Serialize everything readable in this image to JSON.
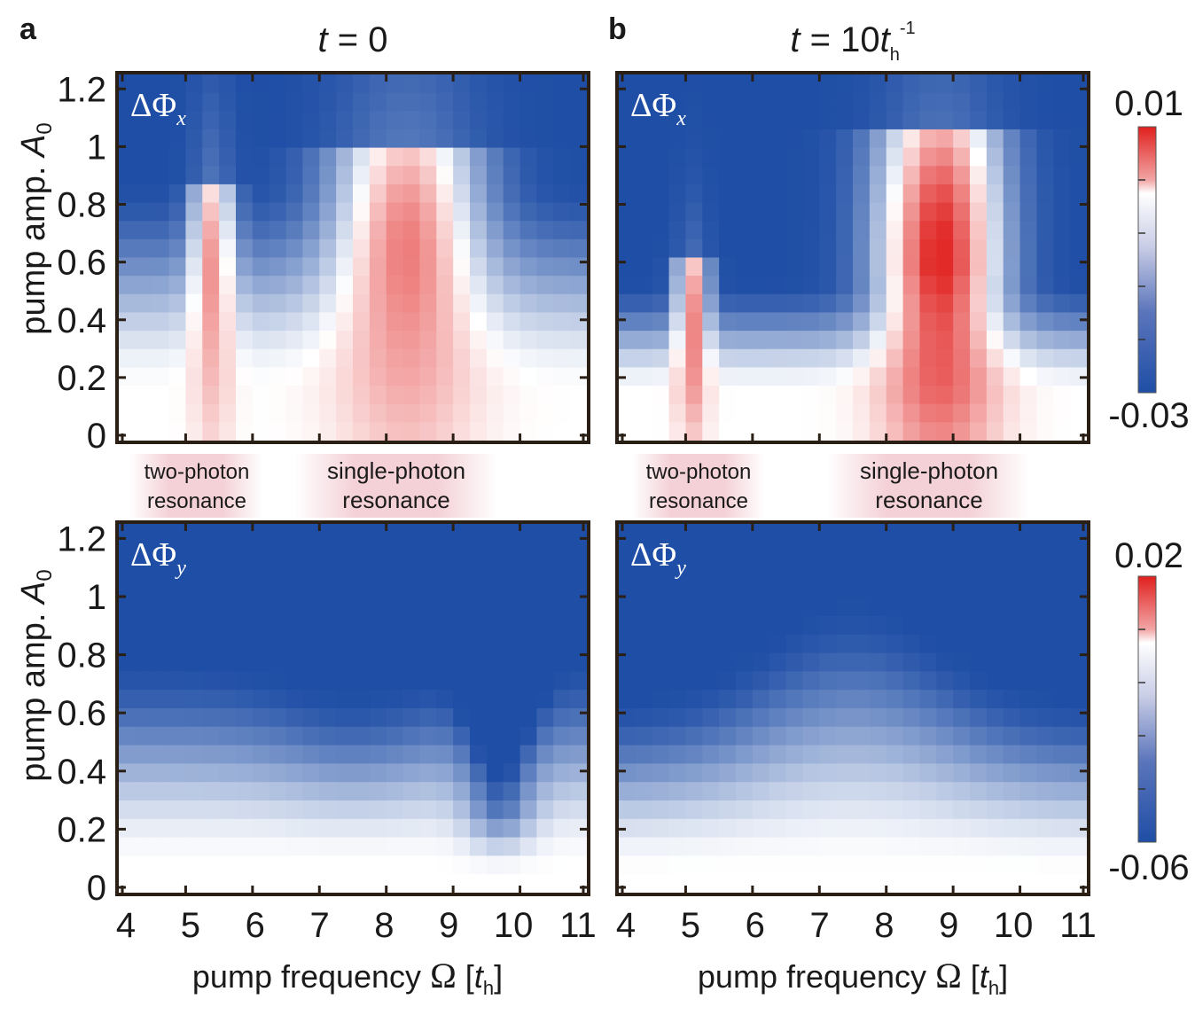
{
  "figure": {
    "panel_a_label": "a",
    "panel_b_label": "b",
    "title_a": {
      "var": "t",
      "eq": " = ",
      "val": "0"
    },
    "title_b": {
      "var": "t",
      "eq": " = ",
      "coef": "10",
      "unit": "t",
      "unit_sub": "h",
      "unit_sup": "-1"
    }
  },
  "annotations": {
    "left": {
      "two_photon_line1": "two-photon",
      "two_photon_line2": "resonance",
      "single_photon_line1": "single-photon",
      "single_photon_line2": "resonance"
    },
    "right": {
      "two_photon_line1": "two-photon",
      "two_photon_line2": "resonance",
      "single_photon_line1": "single-photon",
      "single_photon_line2": "resonance"
    }
  },
  "colors": {
    "red": "#e0201e",
    "white": "#ffffff",
    "blue": "#1f4ea6",
    "frame": "#2a1f14",
    "resonance_band": "#d65a6e"
  },
  "chart_data": [
    {
      "type": "heatmap",
      "id": "top-left",
      "panel": "a",
      "quantity": "ΔΦ",
      "quantity_sub": "x",
      "title": "t = 0",
      "xlabel": "pump frequency Ω [t_h]",
      "ylabel": "pump amp. A_0",
      "x_range": [
        4,
        11
      ],
      "y_range": [
        0,
        1.25
      ],
      "x_ticks": [
        "4",
        "5",
        "6",
        "7",
        "8",
        "9",
        "10",
        "11"
      ],
      "y_ticks": [
        "0",
        "0.2",
        "0.4",
        "0.6",
        "0.8",
        "1",
        "1.2"
      ],
      "colorbar": {
        "max": "0.01",
        "min": "-0.03"
      },
      "resonances": [
        {
          "name": "two-photon",
          "center_omega": 5.4,
          "width": 0.35,
          "peak_amp": 0.55,
          "top_amp": 0.8,
          "value": 0.004
        },
        {
          "name": "single-photon",
          "center_omega": 8.3,
          "width": 1.2,
          "peak_amp": 0.62,
          "top_amp": 0.98,
          "value": 0.005
        }
      ]
    },
    {
      "type": "heatmap",
      "id": "top-right",
      "panel": "b",
      "quantity": "ΔΦ",
      "quantity_sub": "x",
      "title": "t = 10 t_h^-1",
      "xlabel": "pump frequency Ω [t_h]",
      "ylabel": "",
      "x_range": [
        4,
        11
      ],
      "y_range": [
        0,
        1.25
      ],
      "x_ticks": [
        "4",
        "5",
        "6",
        "7",
        "8",
        "9",
        "10",
        "11"
      ],
      "y_ticks": [],
      "colorbar": {
        "max": "0.01",
        "min": "-0.03"
      },
      "resonances": [
        {
          "name": "two-photon",
          "center_omega": 5.1,
          "width": 0.3,
          "peak_amp": 0.4,
          "top_amp": 0.58,
          "value": 0.006
        },
        {
          "name": "single-photon",
          "center_omega": 8.8,
          "width": 1.1,
          "peak_amp": 0.6,
          "top_amp": 1.02,
          "value": 0.01
        }
      ]
    },
    {
      "type": "heatmap",
      "id": "bottom-left",
      "panel": "a",
      "quantity": "ΔΦ",
      "quantity_sub": "y",
      "title": "",
      "xlabel": "pump frequency Ω [t_h]",
      "ylabel": "pump amp. A_0",
      "x_range": [
        4,
        11
      ],
      "y_range": [
        0,
        1.25
      ],
      "x_ticks": [
        "4",
        "5",
        "6",
        "7",
        "8",
        "9",
        "10",
        "11"
      ],
      "y_ticks": [
        "0",
        "0.2",
        "0.4",
        "0.6",
        "0.8",
        "1",
        "1.2"
      ],
      "colorbar": {
        "max": "0.02",
        "min": "-0.06"
      },
      "resonances": []
    },
    {
      "type": "heatmap",
      "id": "bottom-right",
      "panel": "b",
      "quantity": "ΔΦ",
      "quantity_sub": "y",
      "title": "",
      "xlabel": "pump frequency Ω [t_h]",
      "ylabel": "",
      "x_range": [
        4,
        11
      ],
      "y_range": [
        0,
        1.25
      ],
      "x_ticks": [
        "4",
        "5",
        "6",
        "7",
        "8",
        "9",
        "10",
        "11"
      ],
      "y_ticks": [],
      "colorbar": {
        "max": "0.02",
        "min": "-0.06"
      },
      "resonances": []
    }
  ],
  "axis_text": {
    "ylabel_main": "pump amp. ",
    "ylabel_var": "A",
    "ylabel_sub": "0",
    "xlabel_main": "pump frequency ",
    "xlabel_omega": "Ω",
    "xlabel_open": " [",
    "xlabel_var": "t",
    "xlabel_sub": "h",
    "xlabel_close": "]"
  }
}
